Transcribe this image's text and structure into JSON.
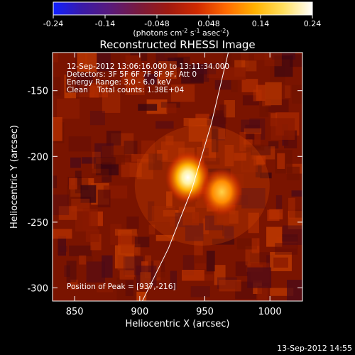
{
  "colorbar": {
    "ticks": [
      "-0.24",
      "-0.14",
      "-0.048",
      "0.048",
      "0.14",
      "0.24"
    ],
    "tick_values": [
      -0.24,
      -0.144,
      -0.048,
      0.048,
      0.144,
      0.24
    ],
    "range": [
      -0.24,
      0.24
    ],
    "unit_label": "(photons cm",
    "unit_exp1": "-2",
    "unit_mid": " s",
    "unit_exp2": "-1",
    "unit_mid2": " asec",
    "unit_exp3": "-2",
    "unit_close": ")",
    "colors": [
      "#1020ff",
      "#3a1aa8",
      "#5a1a7a",
      "#7a1a3c",
      "#a01a10",
      "#d02a00",
      "#ff6a00",
      "#ffb200",
      "#ffe060",
      "#ffffff"
    ]
  },
  "chart_data": {
    "type": "heatmap",
    "title": "Reconstructed RHESSI Image",
    "xlabel": "Heliocentric X (arcsec)",
    "ylabel": "Heliocentric Y (arcsec)",
    "xlim": [
      833,
      1025
    ],
    "ylim": [
      -310,
      -121
    ],
    "x_ticks": [
      850,
      900,
      950,
      1000
    ],
    "y_ticks": [
      -150,
      -200,
      -250,
      -300
    ],
    "info_lines": [
      "12-Sep-2012 13:06:16.000 to 13:11:34.000",
      "Detectors: 3F 5F 6F 7F 8F 9F, Att 0",
      "Energy Range: 3.0 - 6.0 keV",
      "Clean    Total counts: 1.38E+04"
    ],
    "peak_label": "Position of Peak = [937,-216]",
    "peak": [
      937,
      -216
    ],
    "sources": [
      {
        "x": 937,
        "y": -216,
        "intensity": 1.0
      },
      {
        "x": 963,
        "y": -227,
        "intensity": 0.78
      }
    ],
    "limb_curve": [
      [
        968,
        -121
      ],
      [
        955,
        -175
      ],
      [
        940,
        -225
      ],
      [
        922,
        -270
      ],
      [
        902,
        -310
      ]
    ]
  },
  "timestamp": "13-Sep-2012 14:55"
}
